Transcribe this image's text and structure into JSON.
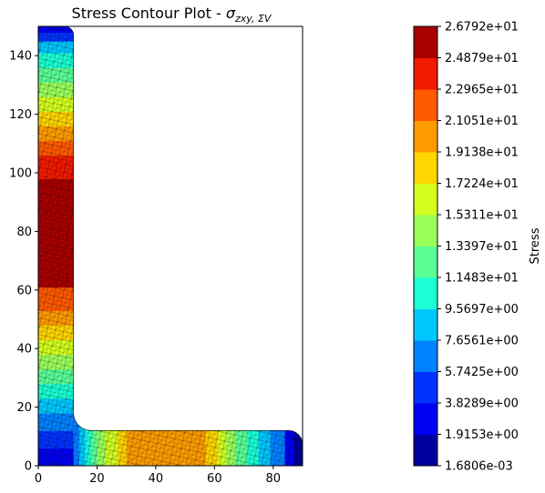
{
  "chart_data": {
    "type": "heatmap",
    "title": "Stress Contour Plot - ",
    "title_math": {
      "base": "σ",
      "subscript": "zxy, ΣV"
    },
    "xlabel": "",
    "ylabel": "",
    "xlim": [
      0,
      90
    ],
    "ylim": [
      0,
      150
    ],
    "x_ticks": [
      0,
      20,
      40,
      60,
      80
    ],
    "y_ticks": [
      0,
      20,
      40,
      60,
      80,
      100,
      120,
      140
    ],
    "geometry": {
      "vertical_leg_x": [
        0,
        12
      ],
      "vertical_leg_y": [
        0,
        150
      ],
      "horizontal_leg_x": [
        0,
        90
      ],
      "horizontal_leg_y": [
        0,
        12
      ],
      "inner_fillet_radius": 6,
      "top_corner_radius": 3
    },
    "colorbar": {
      "label": "Stress",
      "min": 0.0016806,
      "max": 26.792,
      "tick_labels": [
        "2.6792e+01",
        "2.4879e+01",
        "2.2965e+01",
        "2.1051e+01",
        "1.9138e+01",
        "1.7224e+01",
        "1.5311e+01",
        "1.3397e+01",
        "1.1483e+01",
        "9.5697e+00",
        "7.6561e+00",
        "5.7425e+00",
        "3.8289e+00",
        "1.9153e+00",
        "1.6806e-03"
      ],
      "colors_bottom_to_top": [
        "#00009f",
        "#0000f2",
        "#0032ff",
        "#0082ff",
        "#00c8ff",
        "#1affd5",
        "#5bff96",
        "#9bff5a",
        "#d4ff1e",
        "#ffd600",
        "#ff9c00",
        "#ff5a00",
        "#f21a00",
        "#a80000"
      ]
    },
    "vertical_leg_bands": [
      {
        "y0": 0,
        "y1": 6,
        "level": 1
      },
      {
        "y0": 6,
        "y1": 12,
        "level": 2
      },
      {
        "y0": 12,
        "y1": 18,
        "level": 3
      },
      {
        "y0": 18,
        "y1": 23,
        "level": 4
      },
      {
        "y0": 23,
        "y1": 28,
        "level": 5
      },
      {
        "y0": 28,
        "y1": 33,
        "level": 6
      },
      {
        "y0": 33,
        "y1": 38,
        "level": 7
      },
      {
        "y0": 38,
        "y1": 43,
        "level": 8
      },
      {
        "y0": 43,
        "y1": 48,
        "level": 9
      },
      {
        "y0": 48,
        "y1": 53,
        "level": 10
      },
      {
        "y0": 53,
        "y1": 61,
        "level": 11
      },
      {
        "y0": 61,
        "y1": 98,
        "level": 13
      },
      {
        "y0": 98,
        "y1": 106,
        "level": 12
      },
      {
        "y0": 106,
        "y1": 111,
        "level": 11
      },
      {
        "y0": 111,
        "y1": 116,
        "level": 10
      },
      {
        "y0": 116,
        "y1": 121,
        "level": 9
      },
      {
        "y0": 121,
        "y1": 126,
        "level": 8
      },
      {
        "y0": 126,
        "y1": 131,
        "level": 7
      },
      {
        "y0": 131,
        "y1": 136,
        "level": 6
      },
      {
        "y0": 136,
        "y1": 141,
        "level": 5
      },
      {
        "y0": 141,
        "y1": 145,
        "level": 4
      },
      {
        "y0": 145,
        "y1": 148,
        "level": 2
      },
      {
        "y0": 148,
        "y1": 150,
        "level": 1
      }
    ],
    "horizontal_leg_bands": [
      {
        "x0": 12,
        "x1": 14,
        "level": 3
      },
      {
        "x0": 14,
        "x1": 16,
        "level": 4
      },
      {
        "x0": 16,
        "x1": 18,
        "level": 5
      },
      {
        "x0": 18,
        "x1": 20,
        "level": 6
      },
      {
        "x0": 20,
        "x1": 23,
        "level": 7
      },
      {
        "x0": 23,
        "x1": 27,
        "level": 8
      },
      {
        "x0": 27,
        "x1": 30,
        "level": 9
      },
      {
        "x0": 30,
        "x1": 33,
        "level": 10
      },
      {
        "x0": 33,
        "x1": 57,
        "level": 10
      },
      {
        "x0": 57,
        "x1": 61,
        "level": 9
      },
      {
        "x0": 61,
        "x1": 64,
        "level": 8
      },
      {
        "x0": 64,
        "x1": 67,
        "level": 7
      },
      {
        "x0": 67,
        "x1": 71,
        "level": 6
      },
      {
        "x0": 71,
        "x1": 75,
        "level": 5
      },
      {
        "x0": 75,
        "x1": 79,
        "level": 4
      },
      {
        "x0": 79,
        "x1": 84,
        "level": 3
      },
      {
        "x0": 84,
        "x1": 87,
        "level": 1
      },
      {
        "x0": 87,
        "x1": 90,
        "level": 0
      }
    ],
    "mesh_overlay": true,
    "grid": false
  }
}
